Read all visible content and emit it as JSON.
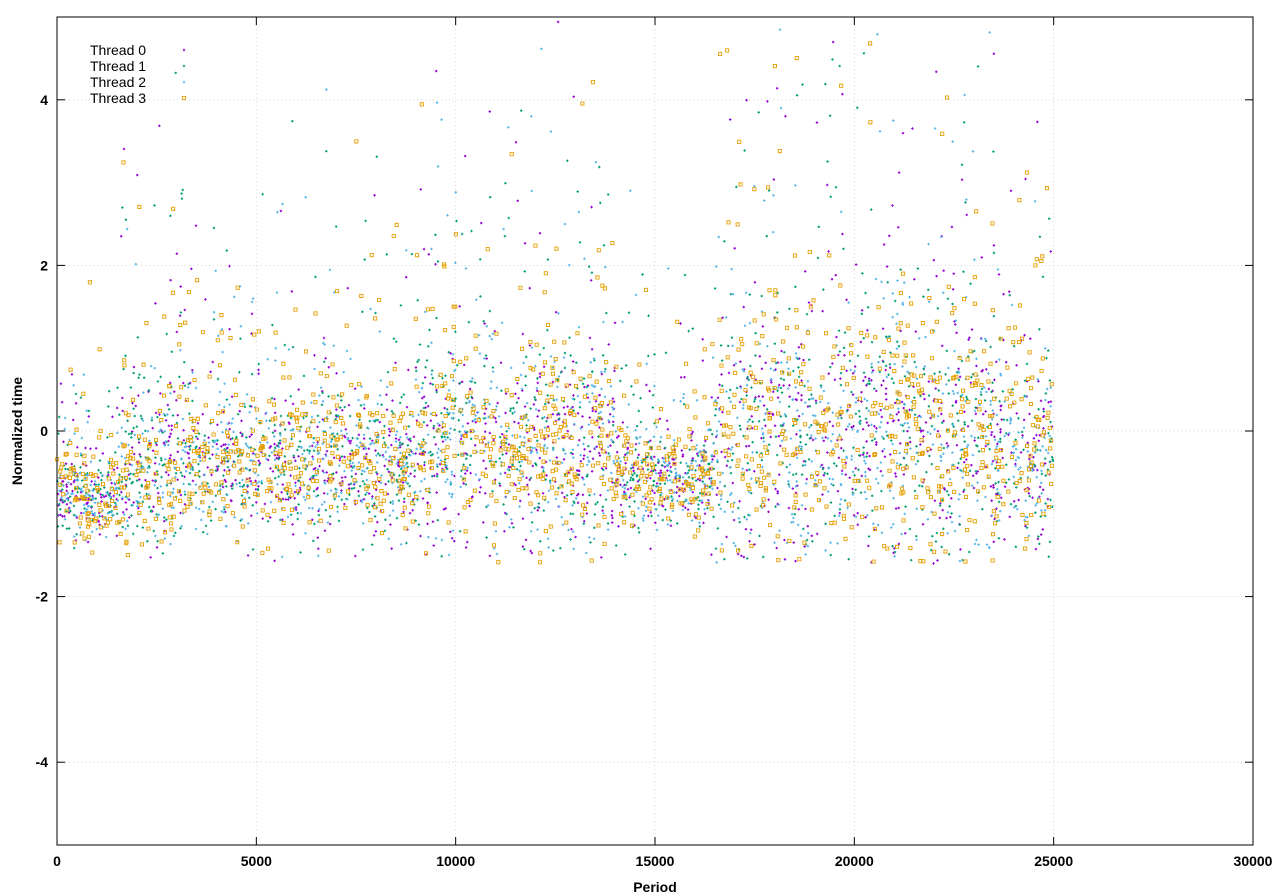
{
  "chart_data": {
    "type": "scatter",
    "title": "",
    "xlabel": "Period",
    "ylabel": "Normalized time",
    "xlim": [
      0,
      30000
    ],
    "ylim": [
      -5,
      5
    ],
    "xticks": [
      0,
      5000,
      10000,
      15000,
      20000,
      25000,
      30000
    ],
    "yticks": [
      -4,
      -2,
      0,
      2,
      4
    ],
    "x_tick_labels": [
      "0",
      "5000",
      "10000",
      "15000",
      "20000",
      "25000",
      "30000"
    ],
    "y_tick_labels": [
      "-4",
      "-2",
      "0",
      "2",
      "4"
    ],
    "grid": true,
    "legend_position": "top-left",
    "x_extent_of_data": [
      0,
      25000
    ],
    "series": [
      {
        "name": "Thread 0",
        "color": "#9400d3",
        "marker": "plus"
      },
      {
        "name": "Thread 1",
        "color": "#009e73",
        "marker": "cross"
      },
      {
        "name": "Thread 2",
        "color": "#56b4e9",
        "marker": "star"
      },
      {
        "name": "Thread 3",
        "color": "#e69f00",
        "marker": "square"
      }
    ],
    "regimes": [
      {
        "x_start": 0,
        "x_end": 1500,
        "center": -0.8,
        "spread": 0.45
      },
      {
        "x_start": 1500,
        "x_end": 3000,
        "center": -0.5,
        "spread": 0.9
      },
      {
        "x_start": 3000,
        "x_end": 9000,
        "center": -0.45,
        "spread": 0.75
      },
      {
        "x_start": 9000,
        "x_end": 14000,
        "center": -0.2,
        "spread": 1.1
      },
      {
        "x_start": 14000,
        "x_end": 16500,
        "center": -0.6,
        "spread": 0.6
      },
      {
        "x_start": 16500,
        "x_end": 23500,
        "center": -0.1,
        "spread": 1.4
      },
      {
        "x_start": 23500,
        "x_end": 25000,
        "center": -0.3,
        "spread": 1.0
      }
    ]
  }
}
